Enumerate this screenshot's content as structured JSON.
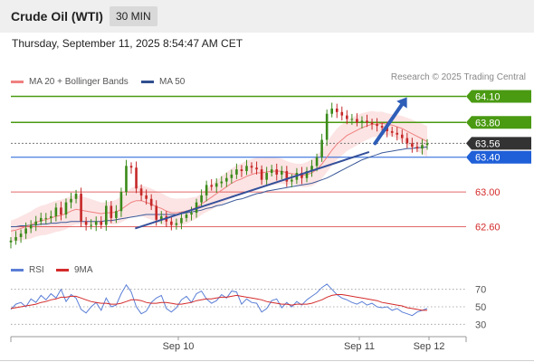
{
  "header": {
    "instrument": "Crude Oil (WTI)",
    "timeframe": "30 MIN"
  },
  "timestamp": "Thursday, September 11, 2025 8:54:47 AM CET",
  "legend": [
    {
      "label": "MA 20 + Bollinger Bands",
      "color": "#f08080"
    },
    {
      "label": "MA 50",
      "color": "#2f4f8f"
    }
  ],
  "copyright": "Research © 2025 Trading Central",
  "rsi_legend": [
    {
      "label": "RSI",
      "color": "#5b7fd6"
    },
    {
      "label": "9MA",
      "color": "#d42a2a"
    }
  ],
  "chart_data": [
    {
      "type": "candlestick",
      "title": "Crude Oil (WTI)",
      "ylim": [
        62.48,
        64.22
      ],
      "x_ticks": [
        "Sep 10",
        "Sep 11",
        "Sep 12"
      ],
      "price_levels": [
        {
          "value": 64.1,
          "label": "64.10",
          "kind": "resistance",
          "color": "#4a9a12"
        },
        {
          "value": 63.8,
          "label": "63.80",
          "kind": "resistance",
          "color": "#4a9a12"
        },
        {
          "value": 63.56,
          "label": "63.56",
          "kind": "last",
          "color": "#333333"
        },
        {
          "value": 63.4,
          "label": "63.40",
          "kind": "pivot",
          "color": "#1f5fd8"
        },
        {
          "value": 63.0,
          "label": "63.00",
          "kind": "support",
          "color": "#d42a2a"
        },
        {
          "value": 62.6,
          "label": "62.60",
          "kind": "support",
          "color": "#d42a2a"
        }
      ],
      "trendline": {
        "from": [
          0.273,
          62.58
        ],
        "to": [
          0.787,
          63.46
        ]
      },
      "forecast_arrow": {
        "from": [
          0.8,
          63.56
        ],
        "to": [
          0.87,
          64.09
        ]
      },
      "closes": [
        62.44,
        62.48,
        62.52,
        62.58,
        62.62,
        62.66,
        62.7,
        62.7,
        62.72,
        62.82,
        62.74,
        62.88,
        62.92,
        62.98,
        62.66,
        62.62,
        62.62,
        62.66,
        62.62,
        62.84,
        62.7,
        62.78,
        63.0,
        63.3,
        63.28,
        63.04,
        62.96,
        62.92,
        62.84,
        62.68,
        62.72,
        62.66,
        62.62,
        62.64,
        62.7,
        62.74,
        62.76,
        62.88,
        62.96,
        63.08,
        63.06,
        63.1,
        63.12,
        63.16,
        63.2,
        63.26,
        63.24,
        63.3,
        63.28,
        63.26,
        63.14,
        63.22,
        63.26,
        63.2,
        63.24,
        63.12,
        63.14,
        63.22,
        63.16,
        63.24,
        63.3,
        63.4,
        63.6,
        63.9,
        63.96,
        63.92,
        63.88,
        63.84,
        63.84,
        63.8,
        63.82,
        63.8,
        63.78,
        63.76,
        63.74,
        63.7,
        63.68,
        63.66,
        63.62,
        63.56,
        63.52,
        63.5,
        63.54,
        63.56
      ],
      "ma20": [
        62.55,
        62.56,
        62.58,
        62.6,
        62.62,
        62.65,
        62.67,
        62.68,
        62.7,
        62.72,
        62.73,
        62.75,
        62.78,
        62.8,
        62.79,
        62.78,
        62.77,
        62.76,
        62.75,
        62.76,
        62.76,
        62.77,
        62.8,
        62.84,
        62.88,
        62.9,
        62.9,
        62.88,
        62.86,
        62.83,
        62.81,
        62.78,
        62.76,
        62.76,
        62.77,
        62.78,
        62.8,
        62.82,
        62.86,
        62.9,
        62.94,
        62.98,
        63.02,
        63.06,
        63.1,
        63.13,
        63.15,
        63.18,
        63.2,
        63.22,
        63.22,
        63.23,
        63.24,
        63.24,
        63.24,
        63.22,
        63.21,
        63.2,
        63.19,
        63.2,
        63.22,
        63.26,
        63.32,
        63.4,
        63.48,
        63.55,
        63.6,
        63.65,
        63.68,
        63.71,
        63.74,
        63.76,
        63.78,
        63.78,
        63.79,
        63.78,
        63.77,
        63.75,
        63.73,
        63.7,
        63.67,
        63.64,
        63.61,
        63.58
      ],
      "ma50": [
        62.6,
        62.6,
        62.61,
        62.61,
        62.62,
        62.62,
        62.63,
        62.63,
        62.64,
        62.64,
        62.65,
        62.65,
        62.66,
        62.66,
        62.66,
        62.66,
        62.66,
        62.66,
        62.66,
        62.67,
        62.67,
        62.68,
        62.69,
        62.7,
        62.71,
        62.72,
        62.73,
        62.74,
        62.74,
        62.74,
        62.74,
        62.74,
        62.74,
        62.74,
        62.75,
        62.76,
        62.77,
        62.78,
        62.79,
        62.81,
        62.82,
        62.84,
        62.85,
        62.87,
        62.89,
        62.91,
        62.92,
        62.94,
        62.96,
        62.98,
        62.99,
        63.01,
        63.02,
        63.03,
        63.04,
        63.05,
        63.06,
        63.07,
        63.08,
        63.09,
        63.1,
        63.12,
        63.14,
        63.16,
        63.19,
        63.22,
        63.25,
        63.28,
        63.31,
        63.34,
        63.37,
        63.39,
        63.41,
        63.43,
        63.45,
        63.46,
        63.47,
        63.48,
        63.49,
        63.5,
        63.5,
        63.51,
        63.51,
        63.52
      ]
    },
    {
      "type": "line",
      "title": "RSI",
      "ylim": [
        20,
        80
      ],
      "y_ticks": [
        70,
        50,
        30
      ],
      "series": [
        {
          "name": "RSI",
          "values": [
            47,
            53,
            55,
            50,
            59,
            55,
            63,
            58,
            65,
            60,
            70,
            56,
            64,
            60,
            47,
            43,
            50,
            55,
            46,
            60,
            50,
            52,
            65,
            75,
            67,
            50,
            42,
            45,
            55,
            60,
            63,
            48,
            44,
            49,
            58,
            62,
            55,
            65,
            68,
            59,
            54,
            57,
            64,
            60,
            68,
            67,
            53,
            59,
            55,
            54,
            44,
            48,
            57,
            59,
            49,
            55,
            50,
            56,
            52,
            58,
            62,
            66,
            72,
            76,
            70,
            64,
            60,
            58,
            55,
            53,
            56,
            52,
            54,
            50,
            49,
            50,
            46,
            48,
            44,
            42,
            40,
            44,
            46,
            48
          ]
        },
        {
          "name": "9MA",
          "values": [
            48,
            49,
            50,
            51,
            52,
            53,
            55,
            56,
            58,
            59,
            61,
            61,
            62,
            62,
            60,
            58,
            56,
            55,
            54,
            54,
            53,
            53,
            54,
            56,
            58,
            58,
            57,
            55,
            54,
            54,
            55,
            55,
            54,
            53,
            53,
            54,
            55,
            57,
            58,
            59,
            59,
            60,
            61,
            61,
            62,
            63,
            62,
            61,
            60,
            59,
            58,
            56,
            55,
            54,
            53,
            53,
            52,
            53,
            53,
            53,
            54,
            56,
            58,
            61,
            63,
            64,
            64,
            63,
            62,
            61,
            60,
            59,
            58,
            57,
            55,
            54,
            53,
            52,
            51,
            49,
            48,
            47,
            46,
            46
          ]
        }
      ]
    }
  ]
}
